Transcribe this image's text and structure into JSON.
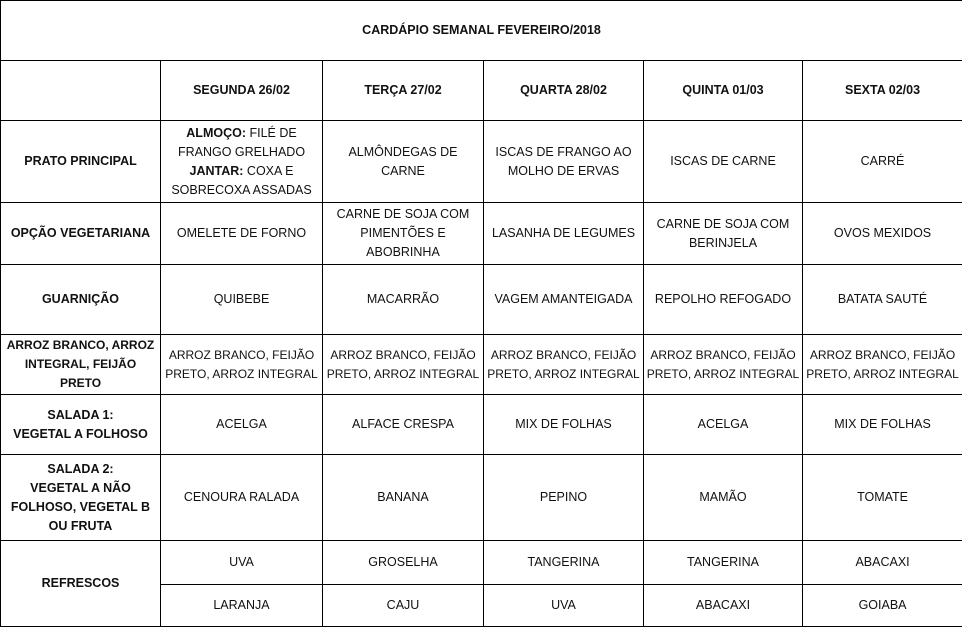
{
  "title": "CARDÁPIO SEMANAL FEVEREIRO/2018",
  "days": [
    "SEGUNDA   26/02",
    "TERÇA 27/02",
    "QUARTA 28/02",
    "QUINTA 01/03",
    "SEXTA 02/03"
  ],
  "rows": [
    {
      "label": "PRATO PRINCIPAL",
      "cells": [
        "",
        "ALMÔNDEGAS DE CARNE",
        "ISCAS DE FRANGO AO\nMOLHO DE ERVAS",
        "ISCAS DE CARNE",
        "CARRÉ"
      ]
    },
    {
      "label": "OPÇÃO VEGETARIANA",
      "cells": [
        "OMELETE DE FORNO",
        "CARNE DE SOJA COM\nPIMENTÕES E\nABOBRINHA",
        "LASANHA DE LEGUMES",
        "CARNE DE SOJA COM\nBERINJELA",
        "OVOS MEXIDOS"
      ]
    },
    {
      "label": "GUARNIÇÃO",
      "cells": [
        "QUIBEBE",
        "MACARRÃO",
        "VAGEM AMANTEIGADA",
        "REPOLHO REFOGADO",
        "BATATA SAUTÉ"
      ]
    },
    {
      "label": "ARROZ BRANCO, ARROZ\nINTEGRAL, FEIJÃO PRETO",
      "cells": [
        "ARROZ BRANCO, FEIJÃO\nPRETO, ARROZ INTEGRAL",
        "ARROZ BRANCO, FEIJÃO\nPRETO, ARROZ INTEGRAL",
        "ARROZ BRANCO, FEIJÃO\nPRETO, ARROZ INTEGRAL",
        "ARROZ BRANCO, FEIJÃO\nPRETO, ARROZ INTEGRAL",
        "ARROZ BRANCO, FEIJÃO\nPRETO, ARROZ INTEGRAL"
      ]
    },
    {
      "label": "SALADA 1:\nVEGETAL A FOLHOSO",
      "cells": [
        "ACELGA",
        "ALFACE CRESPA",
        "MIX DE FOLHAS",
        "ACELGA",
        "MIX DE FOLHAS"
      ]
    },
    {
      "label": "SALADA 2:\nVEGETAL A NÃO\nFOLHOSO, VEGETAL B\nOU FRUTA",
      "cells": [
        "CENOURA  RALADA",
        "BANANA",
        "PEPINO",
        "MAMÃO",
        "TOMATE"
      ]
    }
  ],
  "monday_main": {
    "lunch_label": "ALMOÇO:",
    "lunch": " FILÉ  DE\nFRANGO GRELHADO",
    "dinner_label": "JANTAR:",
    "dinner": " COXA E\nSOBRECOXA ASSADAS"
  },
  "refrescos": {
    "label": "REFRESCOS",
    "row1": [
      "UVA",
      "GROSELHA",
      "TANGERINA",
      "TANGERINA",
      "ABACAXI"
    ],
    "row2": [
      "LARANJA",
      "CAJU",
      "UVA",
      "ABACAXI",
      "GOIABA"
    ]
  }
}
